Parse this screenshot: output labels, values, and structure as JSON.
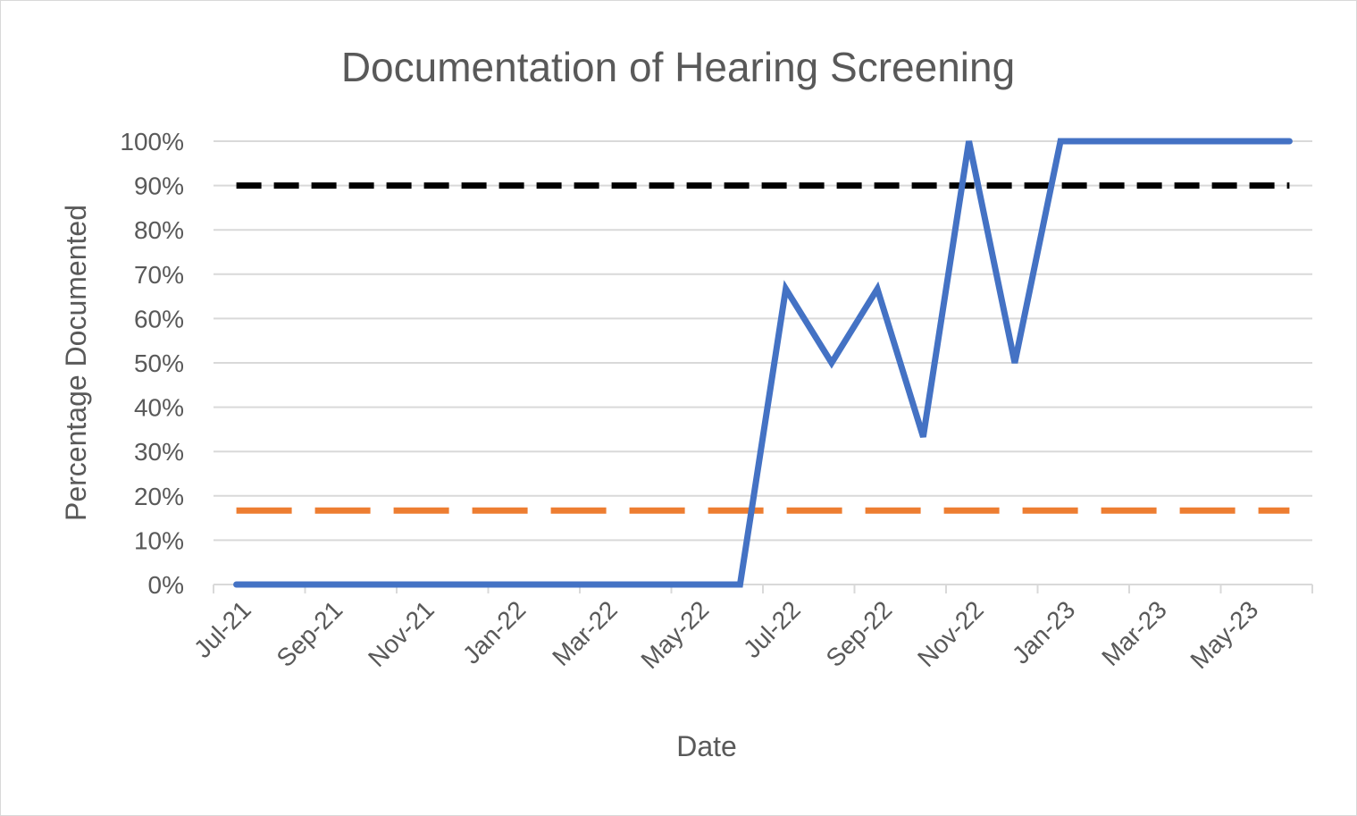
{
  "chart_data": {
    "type": "line",
    "title": "Documentation of Hearing Screening",
    "xlabel": "Date",
    "ylabel": "Percentage Documented",
    "y_ticks": [
      "0%",
      "10%",
      "20%",
      "30%",
      "40%",
      "50%",
      "60%",
      "70%",
      "80%",
      "90%",
      "100%"
    ],
    "ylim": [
      0,
      100
    ],
    "x_ticks": [
      "Jul-21",
      "Sep-21",
      "Nov-21",
      "Jan-22",
      "Mar-22",
      "May-22",
      "Jul-22",
      "Sep-22",
      "Nov-22",
      "Jan-23",
      "Mar-23",
      "May-23"
    ],
    "x": [
      "Jul-21",
      "Aug-21",
      "Sep-21",
      "Oct-21",
      "Nov-21",
      "Dec-21",
      "Jan-22",
      "Feb-22",
      "Mar-22",
      "Apr-22",
      "May-22",
      "Jun-22",
      "Jul-22",
      "Aug-22",
      "Sep-22",
      "Oct-22",
      "Nov-22",
      "Dec-22",
      "Jan-23",
      "Feb-23",
      "Mar-23",
      "Apr-23",
      "May-23",
      "Jun-23"
    ],
    "grid": true,
    "legend": "none",
    "series": [
      {
        "style": "solid",
        "color": "#4472C4",
        "values": [
          0,
          0,
          0,
          0,
          0,
          0,
          0,
          0,
          0,
          0,
          0,
          0,
          66.7,
          50,
          66.7,
          33.3,
          100,
          50,
          100,
          100,
          100,
          100,
          100,
          100
        ]
      },
      {
        "style": "dashed",
        "color": "#ED7D31",
        "values": [
          16.7,
          16.7,
          16.7,
          16.7,
          16.7,
          16.7,
          16.7,
          16.7,
          16.7,
          16.7,
          16.7,
          16.7,
          16.7,
          16.7,
          16.7,
          16.7,
          16.7,
          16.7,
          16.7,
          16.7,
          16.7,
          16.7,
          16.7,
          16.7
        ]
      },
      {
        "style": "dashed",
        "color": "#000000",
        "values": [
          90,
          90,
          90,
          90,
          90,
          90,
          90,
          90,
          90,
          90,
          90,
          90,
          90,
          90,
          90,
          90,
          90,
          90,
          90,
          90,
          90,
          90,
          90,
          90
        ]
      }
    ]
  }
}
